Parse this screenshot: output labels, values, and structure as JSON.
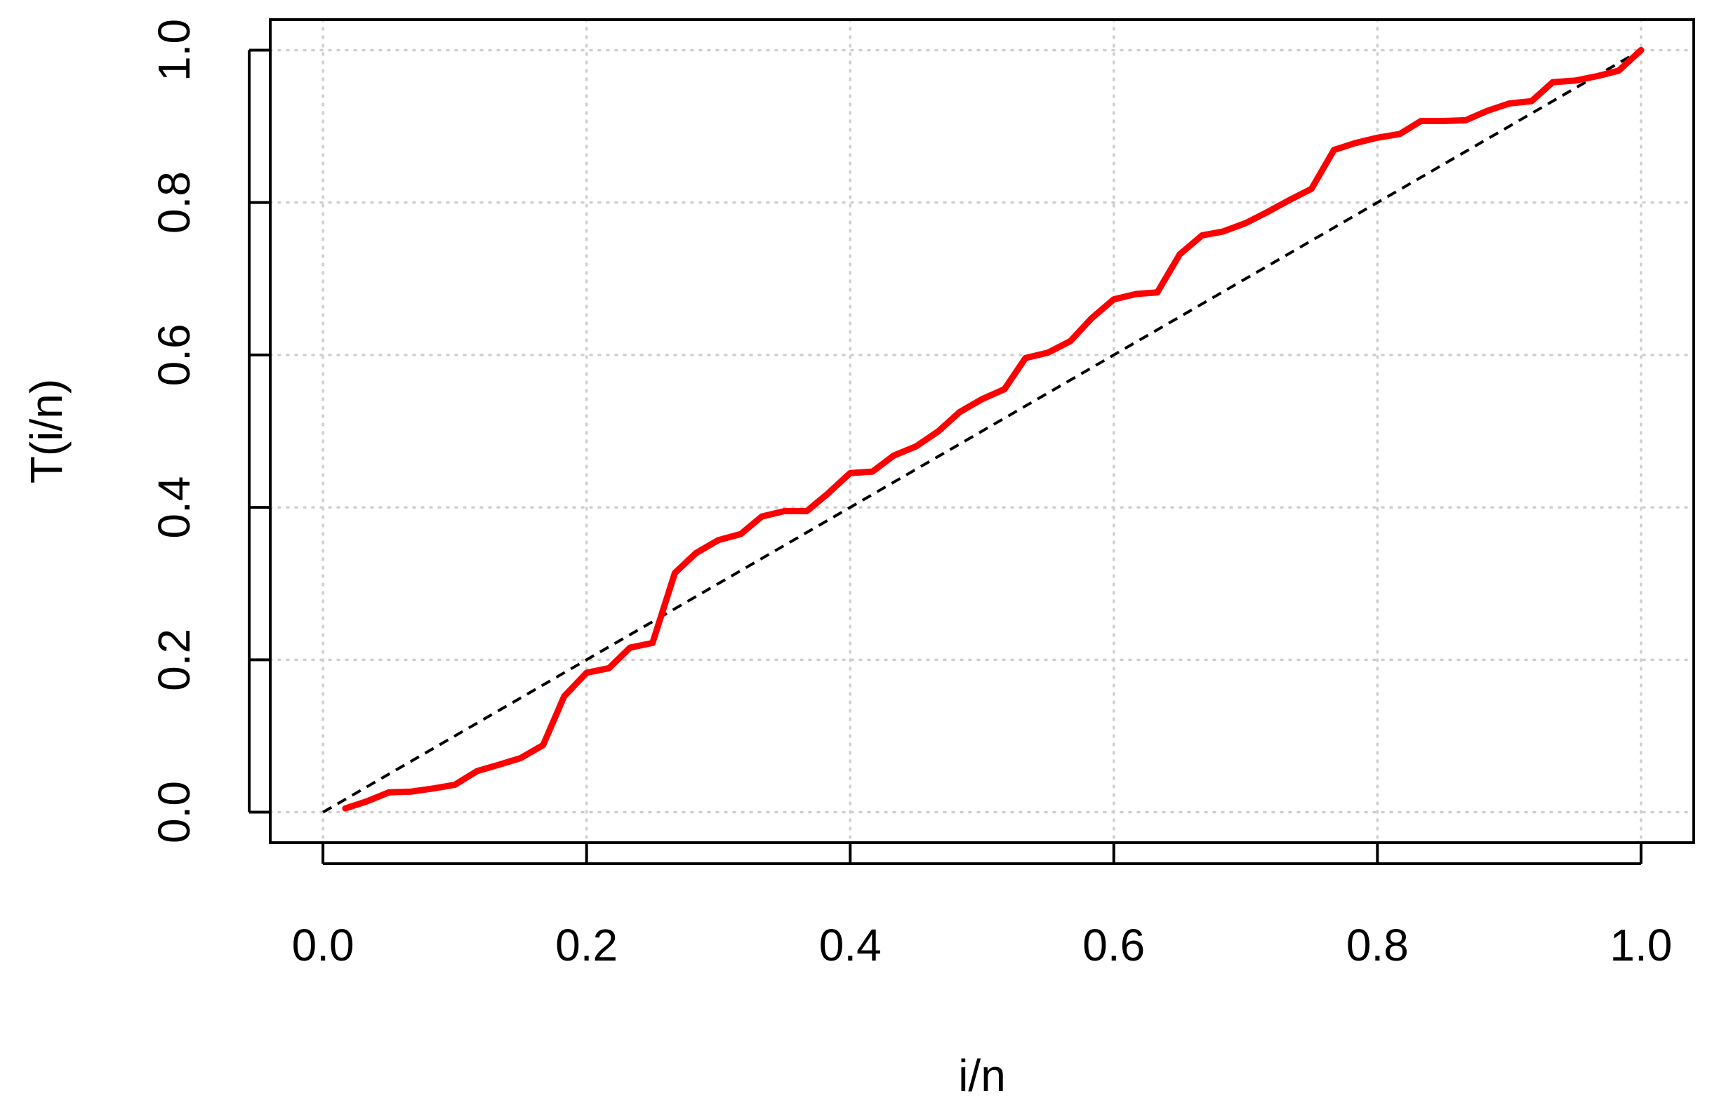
{
  "chart_data": {
    "type": "line",
    "title": "",
    "xlabel": "i/n",
    "ylabel": "T(i/n)",
    "xlim": [
      -0.04,
      1.04
    ],
    "ylim": [
      -0.04,
      1.04
    ],
    "x_ticks": [
      "0.0",
      "0.2",
      "0.4",
      "0.6",
      "0.8",
      "1.0"
    ],
    "y_ticks": [
      "0.0",
      "0.2",
      "0.4",
      "0.6",
      "0.8",
      "1.0"
    ],
    "grid": true,
    "legend": "none",
    "series": [
      {
        "style": "solid",
        "color": "#ff0000",
        "x": [
          0.017,
          0.033,
          0.05,
          0.067,
          0.083,
          0.1,
          0.117,
          0.133,
          0.15,
          0.167,
          0.183,
          0.2,
          0.217,
          0.233,
          0.25,
          0.267,
          0.283,
          0.3,
          0.317,
          0.333,
          0.35,
          0.367,
          0.383,
          0.4,
          0.417,
          0.433,
          0.45,
          0.467,
          0.483,
          0.5,
          0.517,
          0.533,
          0.55,
          0.567,
          0.583,
          0.6,
          0.617,
          0.633,
          0.65,
          0.667,
          0.683,
          0.7,
          0.717,
          0.733,
          0.75,
          0.767,
          0.783,
          0.8,
          0.817,
          0.833,
          0.85,
          0.867,
          0.883,
          0.9,
          0.917,
          0.933,
          0.95,
          0.967,
          0.983,
          1.0
        ],
        "y": [
          0.005,
          0.014,
          0.026,
          0.027,
          0.031,
          0.036,
          0.054,
          0.062,
          0.071,
          0.088,
          0.152,
          0.183,
          0.189,
          0.216,
          0.222,
          0.314,
          0.34,
          0.357,
          0.365,
          0.388,
          0.395,
          0.395,
          0.418,
          0.445,
          0.447,
          0.468,
          0.48,
          0.5,
          0.525,
          0.542,
          0.555,
          0.596,
          0.603,
          0.618,
          0.648,
          0.673,
          0.68,
          0.682,
          0.732,
          0.757,
          0.762,
          0.773,
          0.788,
          0.803,
          0.818,
          0.869,
          0.878,
          0.885,
          0.89,
          0.907,
          0.907,
          0.908,
          0.92,
          0.93,
          0.933,
          0.958,
          0.96,
          0.966,
          0.973,
          1.0
        ]
      },
      {
        "style": "dashed",
        "color": "#000000",
        "x": [
          0,
          1
        ],
        "y": [
          0,
          1
        ]
      }
    ]
  }
}
